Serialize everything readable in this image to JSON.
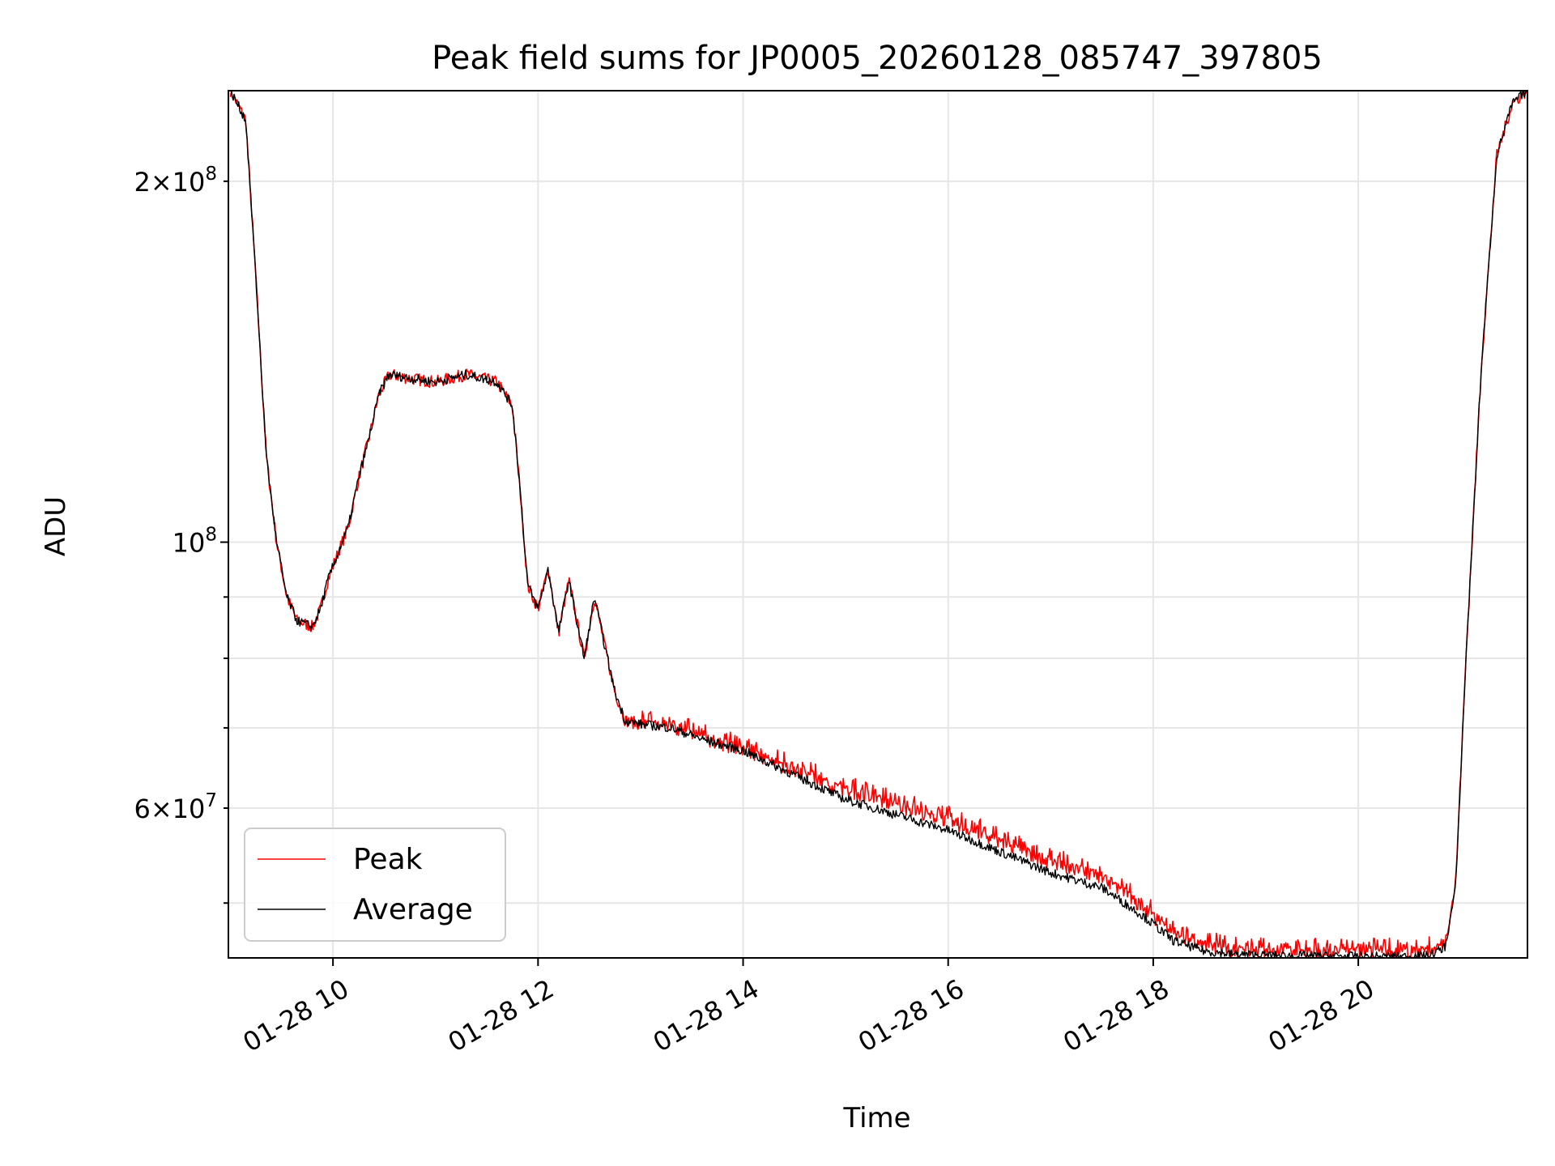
{
  "chart_data": {
    "type": "line",
    "title": "Peak field sums for JP0005_20260128_085747_397805",
    "xlabel": "Time",
    "ylabel": "ADU",
    "yscale": "log",
    "xlim": [
      8.98,
      21.65
    ],
    "ylim": [
      45000000,
      238000000
    ],
    "x_ticks": [
      10,
      12,
      14,
      16,
      18,
      20
    ],
    "x_tick_labels": [
      "01-28 10",
      "01-28 12",
      "01-28 14",
      "01-28 16",
      "01-28 18",
      "01-28 20"
    ],
    "y_major_ticks": [
      100000000
    ],
    "y_major_labels": [
      "10^8"
    ],
    "y_minor_ticks": [
      50000000,
      60000000,
      70000000,
      80000000,
      90000000,
      200000000
    ],
    "y_minor_labels": [
      "",
      "6×10^7",
      "",
      "",
      "",
      "2×10^8"
    ],
    "grid": true,
    "legend_position": "lower-left",
    "series": [
      {
        "name": "Peak",
        "color": "#ff0000",
        "noise": 0.012,
        "bias": 1.018,
        "x": [
          9.0,
          9.15,
          9.25,
          9.35,
          9.45,
          9.55,
          9.65,
          9.8,
          9.88,
          9.95,
          10.05,
          10.15,
          10.25,
          10.35,
          10.45,
          10.55,
          10.75,
          11.0,
          11.3,
          11.6,
          11.75,
          11.82,
          11.9,
          12.0,
          12.1,
          12.2,
          12.3,
          12.45,
          12.55,
          12.65,
          12.75,
          12.85,
          13.0,
          13.3,
          13.6,
          14.0,
          15.0,
          16.0,
          17.0,
          17.5,
          17.9,
          18.2,
          18.5,
          18.8,
          19.2,
          19.8,
          20.4,
          20.7,
          20.85,
          20.95,
          21.05,
          21.2,
          21.35,
          21.5,
          21.64
        ],
        "y": [
          238000000,
          225000000,
          165000000,
          118000000,
          100000000,
          90000000,
          86000000,
          85000000,
          88000000,
          93000000,
          98000000,
          103000000,
          113000000,
          122000000,
          133000000,
          138000000,
          137000000,
          136000000,
          138000000,
          136000000,
          130000000,
          112000000,
          92000000,
          88000000,
          95000000,
          84000000,
          93000000,
          80000000,
          90000000,
          82000000,
          75000000,
          71000000,
          70500000,
          70000000,
          68500000,
          67000000,
          62000000,
          58500000,
          54000000,
          52500000,
          49500000,
          47000000,
          46000000,
          45600000,
          45500000,
          45400000,
          45400000,
          45500000,
          46500000,
          52000000,
          80000000,
          140000000,
          210000000,
          232000000,
          238000000
        ]
      },
      {
        "name": "Average",
        "color": "#000000",
        "noise": 0.009,
        "bias": 1.0,
        "x": [
          9.0,
          9.15,
          9.25,
          9.35,
          9.45,
          9.55,
          9.65,
          9.8,
          9.88,
          9.95,
          10.05,
          10.15,
          10.25,
          10.35,
          10.45,
          10.55,
          10.75,
          11.0,
          11.3,
          11.6,
          11.75,
          11.82,
          11.9,
          12.0,
          12.1,
          12.2,
          12.3,
          12.45,
          12.55,
          12.65,
          12.75,
          12.85,
          13.0,
          13.3,
          13.6,
          14.0,
          15.0,
          16.0,
          17.0,
          17.5,
          17.9,
          18.2,
          18.5,
          18.8,
          19.2,
          19.8,
          20.4,
          20.7,
          20.85,
          20.95,
          21.05,
          21.2,
          21.35,
          21.5,
          21.64
        ],
        "y": [
          238000000,
          225000000,
          165000000,
          118000000,
          100000000,
          90000000,
          86000000,
          85000000,
          88000000,
          93000000,
          98000000,
          103000000,
          113000000,
          122000000,
          133000000,
          138000000,
          137000000,
          136000000,
          138000000,
          136000000,
          130000000,
          112000000,
          92000000,
          88000000,
          95000000,
          84000000,
          93000000,
          80000000,
          90000000,
          82000000,
          75000000,
          71000000,
          70500000,
          70000000,
          68500000,
          67000000,
          61000000,
          57500000,
          53000000,
          51500000,
          48800000,
          46500000,
          45600000,
          45300000,
          45200000,
          45150000,
          45100000,
          45200000,
          46000000,
          51500000,
          80000000,
          140000000,
          210000000,
          232000000,
          238000000
        ]
      }
    ]
  }
}
